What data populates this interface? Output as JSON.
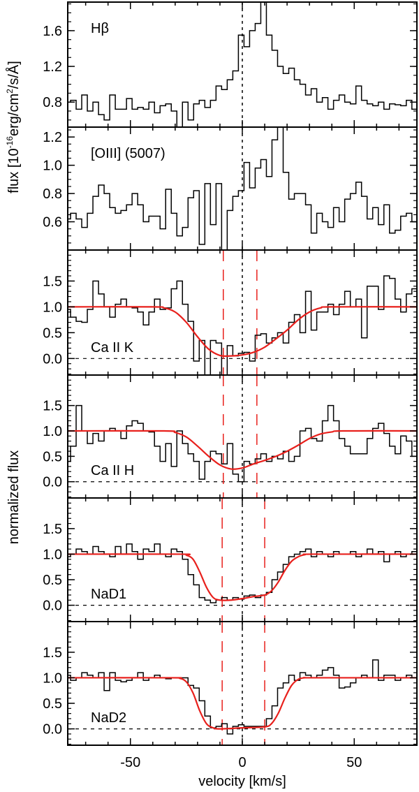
{
  "chart_data": {
    "type": "line",
    "style": "stacked-step-spectra",
    "xlabel": "velocity [km/s]",
    "xlim": [
      -78,
      78
    ],
    "xticks": [
      -50,
      0,
      50
    ],
    "x_start": -78,
    "x_step": 2.5,
    "ylabel_top": "flux [10",
    "ylabel_top_exp": "-16",
    "ylabel_top_rest": "erg/cm",
    "ylabel_top_exp2": "2",
    "ylabel_top_tail": "/s/Å]",
    "ylabel_bottom": "normalized flux",
    "colors": {
      "data": "#000000",
      "fit": "#e8201c",
      "marker": "#e8201c"
    },
    "panels": [
      {
        "label": "Hβ",
        "ylim": [
          0.52,
          1.92
        ],
        "yticks": [
          0.8,
          1.2,
          1.6
        ],
        "ytick_labels": [
          "0.8",
          "1.2",
          "1.6"
        ],
        "zero_line": false,
        "values": [
          0.8,
          0.82,
          0.72,
          0.88,
          0.7,
          0.8,
          0.66,
          0.6,
          0.88,
          0.72,
          0.72,
          0.84,
          0.72,
          0.74,
          0.72,
          0.8,
          0.68,
          0.76,
          0.78,
          0.7,
          0.52,
          0.8,
          0.6,
          0.78,
          0.82,
          0.74,
          0.82,
          0.98,
          0.94,
          1.05,
          1.15,
          1.55,
          1.42,
          1.6,
          1.68,
          1.95,
          1.55,
          1.38,
          1.2,
          1.12,
          1.18,
          1.05,
          1.0,
          0.88,
          0.95,
          0.8,
          0.85,
          0.72,
          0.82,
          0.88,
          0.8,
          0.78,
          0.98,
          0.82,
          0.78,
          0.76,
          0.8,
          0.72,
          0.78,
          0.77,
          0.76,
          0.82,
          0.72
        ]
      },
      {
        "label": "[OIII] (5007)",
        "ylim": [
          0.4,
          1.27
        ],
        "yticks": [
          0.6,
          0.8,
          1.0,
          1.2
        ],
        "ytick_labels": [
          "0.6",
          "0.8",
          "1.0",
          "1.2"
        ],
        "zero_line": false,
        "values": [
          0.62,
          0.66,
          0.62,
          0.56,
          0.66,
          0.78,
          0.86,
          0.8,
          0.7,
          0.66,
          0.68,
          0.72,
          0.8,
          0.72,
          0.6,
          0.64,
          0.64,
          0.55,
          0.83,
          0.66,
          0.5,
          0.56,
          0.77,
          0.82,
          0.44,
          0.87,
          0.58,
          0.87,
          0.35,
          0.68,
          0.78,
          0.82,
          1.02,
          0.84,
          0.98,
          1.04,
          0.92,
          1.18,
          1.3,
          0.95,
          0.76,
          0.8,
          0.8,
          0.72,
          0.52,
          0.66,
          0.6,
          0.56,
          0.7,
          0.6,
          0.76,
          0.8,
          0.88,
          0.78,
          0.62,
          0.7,
          0.58,
          0.72,
          0.52,
          0.54,
          0.64,
          0.66,
          0.6
        ]
      },
      {
        "label": "Ca II K",
        "ylim": [
          -0.32,
          2.1
        ],
        "yticks": [
          0.0,
          0.5,
          1.0,
          1.5
        ],
        "ytick_labels": [
          "0.0",
          "0.5",
          "1.0",
          "1.5"
        ],
        "zero_line": true,
        "values": [
          0.95,
          0.8,
          0.72,
          0.7,
          0.95,
          1.5,
          1.25,
          1.0,
          0.8,
          1.05,
          1.15,
          1.0,
          0.98,
          0.9,
          0.65,
          0.9,
          1.15,
          0.95,
          0.98,
          1.35,
          1.5,
          1.05,
          0.72,
          -0.05,
          0.35,
          -0.35,
          0.35,
          0.3,
          -0.35,
          0.25,
          0.05,
          0.1,
          0.12,
          -0.05,
          0.45,
          0.48,
          0.3,
          0.4,
          0.5,
          0.3,
          0.7,
          0.85,
          0.5,
          1.3,
          0.55,
          0.9,
          0.9,
          1.05,
          0.85,
          1.05,
          1.3,
          1.0,
          1.15,
          0.4,
          1.4,
          1.4,
          0.95,
          1.6,
          1.55,
          1.15,
          0.9,
          1.25,
          1.35
        ],
        "fit_x": [
          -78,
          -40,
          -35,
          -30,
          -25,
          -20,
          -15,
          -10,
          -5,
          0,
          5,
          10,
          15,
          20,
          25,
          30,
          35,
          40,
          78
        ],
        "fit_y": [
          1,
          1,
          0.98,
          0.9,
          0.7,
          0.42,
          0.18,
          0.06,
          0.05,
          0.07,
          0.12,
          0.22,
          0.38,
          0.55,
          0.75,
          0.9,
          0.98,
          1,
          1
        ],
        "markers": [
          -8.5,
          6.5
        ]
      },
      {
        "label": "Ca II H",
        "ylim": [
          -0.32,
          2.1
        ],
        "yticks": [
          0.0,
          0.5,
          1.0,
          1.5
        ],
        "ytick_labels": [
          "0.0",
          "0.5",
          "1.0",
          "1.5"
        ],
        "zero_line": true,
        "values": [
          0.4,
          0.7,
          1.5,
          1.0,
          0.75,
          0.95,
          0.8,
          1.0,
          1.05,
          1.0,
          0.85,
          1.1,
          1.2,
          1.15,
          1.0,
          0.98,
          0.7,
          0.4,
          0.75,
          0.3,
          1.0,
          0.75,
          0.55,
          0.4,
          0.05,
          0.4,
          0.6,
          0.55,
          0.35,
          0.75,
          0.15,
          0.0,
          0.4,
          0.35,
          0.45,
          0.55,
          0.4,
          0.5,
          0.45,
          0.6,
          0.4,
          0.5,
          1.0,
          1.05,
          0.85,
          0.8,
          1.2,
          1.5,
          1.2,
          0.85,
          0.7,
          0.55,
          0.55,
          0.55,
          0.85,
          1.05,
          1.15,
          0.95,
          0.7,
          0.55,
          0.9,
          0.8,
          0.5
        ],
        "fit_x": [
          -78,
          -35,
          -30,
          -25,
          -20,
          -15,
          -10,
          -5,
          0,
          5,
          10,
          15,
          20,
          25,
          30,
          35,
          40,
          45,
          78
        ],
        "fit_y": [
          1,
          1,
          0.97,
          0.88,
          0.7,
          0.5,
          0.33,
          0.25,
          0.27,
          0.35,
          0.42,
          0.5,
          0.6,
          0.72,
          0.85,
          0.94,
          0.98,
          1,
          1
        ],
        "markers": [
          -8.5,
          6.5
        ]
      },
      {
        "label": "NaD1",
        "ylim": [
          -0.32,
          2.1
        ],
        "yticks": [
          0.0,
          0.5,
          1.0,
          1.5
        ],
        "ytick_labels": [
          "0.0",
          "0.5",
          "1.0",
          "1.5"
        ],
        "zero_line": true,
        "values": [
          0.95,
          1.0,
          1.1,
          1.05,
          1.0,
          1.15,
          1.05,
          1.0,
          0.95,
          1.15,
          1.0,
          1.2,
          1.05,
          0.9,
          1.1,
          1.05,
          1.2,
          1.0,
          0.95,
          1.1,
          1.05,
          0.9,
          0.6,
          0.4,
          0.15,
          0.1,
          0.05,
          0.1,
          0.15,
          0.1,
          0.15,
          0.12,
          0.18,
          0.2,
          0.15,
          0.2,
          0.25,
          0.5,
          0.65,
          0.8,
          0.95,
          1.0,
          1.05,
          1.1,
          0.95,
          1.05,
          1.0,
          0.95,
          1.05,
          1.0,
          1.0,
          1.05,
          0.95,
          1.0,
          1.1,
          1.0,
          1.05,
          0.85,
          1.0,
          1.05,
          0.95,
          1.0,
          1.05
        ],
        "fit_x": [
          -78,
          -28,
          -25,
          -22,
          -19,
          -16,
          -13,
          -10,
          -5,
          0,
          5,
          10,
          13,
          16,
          19,
          22,
          25,
          28,
          32,
          78
        ],
        "fit_y": [
          1,
          1,
          0.98,
          0.9,
          0.65,
          0.35,
          0.15,
          0.1,
          0.1,
          0.13,
          0.17,
          0.2,
          0.28,
          0.45,
          0.68,
          0.86,
          0.95,
          0.99,
          1,
          1
        ],
        "markers": [
          -9,
          10
        ]
      },
      {
        "label": "NaD2",
        "ylim": [
          -0.32,
          2.1
        ],
        "yticks": [
          0.0,
          0.5,
          1.0,
          1.5
        ],
        "ytick_labels": [
          "0.0",
          "0.5",
          "1.0",
          "1.5"
        ],
        "zero_line": true,
        "values": [
          1.05,
          0.95,
          1.0,
          1.1,
          1.05,
          1.0,
          1.1,
          0.75,
          1.1,
          0.95,
          0.92,
          0.95,
          1.0,
          1.1,
          0.95,
          1.0,
          1.05,
          1.0,
          0.98,
          1.0,
          1.0,
          1.0,
          0.85,
          0.8,
          0.55,
          0.25,
          0.02,
          0.05,
          0.1,
          -0.1,
          0.05,
          0.08,
          0.05,
          0.05,
          0.05,
          0.05,
          0.2,
          0.45,
          0.8,
          0.9,
          1.05,
          0.95,
          1.1,
          1.05,
          1.0,
          1.05,
          1.15,
          1.2,
          1.05,
          0.8,
          0.82,
          0.9,
          1.0,
          1.05,
          1.0,
          1.35,
          0.95,
          1.05,
          1.05,
          0.95,
          1.0,
          1.05,
          1.0
        ],
        "fit_x": [
          -78,
          -32,
          -28,
          -25,
          -22,
          -19,
          -16,
          -13,
          -10,
          0,
          10,
          13,
          16,
          19,
          22,
          25,
          28,
          32,
          78
        ],
        "fit_y": [
          1,
          1,
          0.99,
          0.92,
          0.7,
          0.35,
          0.1,
          0.02,
          0,
          0.02,
          0.04,
          0.1,
          0.3,
          0.6,
          0.85,
          0.97,
          1,
          1,
          1
        ],
        "markers": [
          -9,
          10
        ]
      }
    ]
  }
}
